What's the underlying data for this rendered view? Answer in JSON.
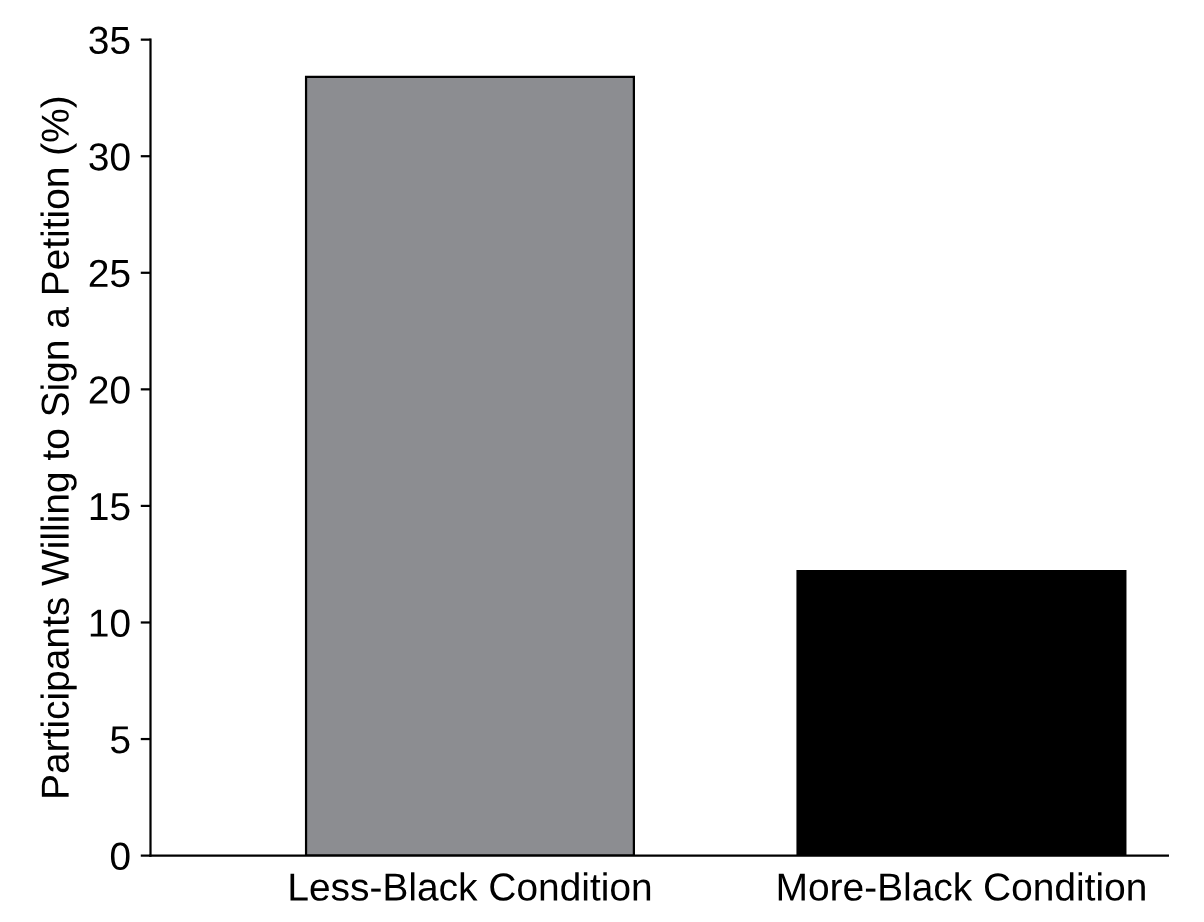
{
  "chart_data": {
    "type": "bar",
    "ylabel": "Participants Willing to Sign a Petition (%)",
    "categories": [
      "Less-Black Condition",
      "More-Black Condition"
    ],
    "values": [
      33.4,
      12.2
    ],
    "colors": [
      "#8c8d91",
      "#000000"
    ],
    "ylim": [
      0,
      35
    ],
    "yticks": [
      0,
      5,
      10,
      15,
      20,
      25,
      30,
      35
    ],
    "grid": false,
    "legend": false
  }
}
